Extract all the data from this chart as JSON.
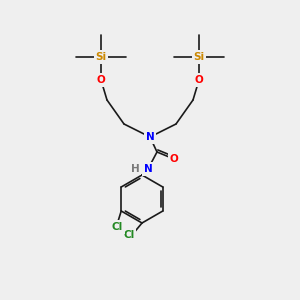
{
  "background_color": "#efefef",
  "atom_colors": {
    "C": "#1a1a1a",
    "H": "#7a7a7a",
    "N": "#0000ff",
    "O": "#ff0000",
    "Si": "#cc8800",
    "Cl": "#228822"
  },
  "bond_color": "#1a1a1a",
  "bond_width": 1.2,
  "figsize": [
    3.0,
    3.0
  ],
  "dpi": 100
}
